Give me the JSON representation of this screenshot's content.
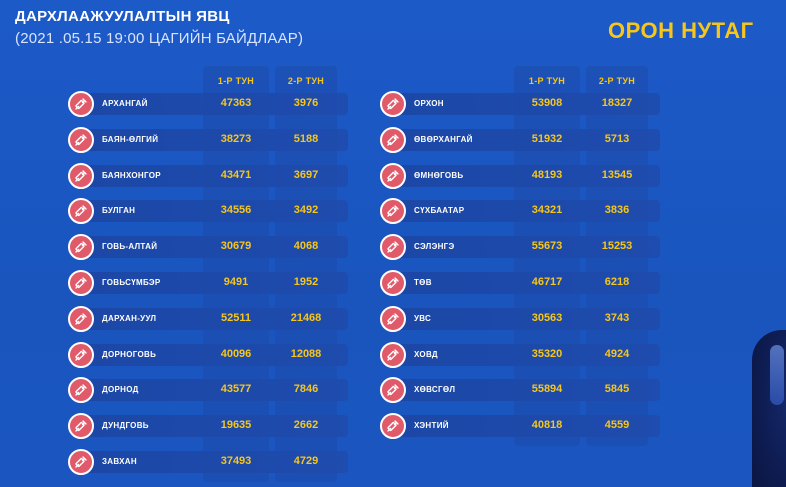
{
  "header": {
    "title": "ДАРХЛААЖУУЛАЛТЫН ЯВЦ",
    "subtitle": "(2021 .05.15    19:00 ЦАГИЙН БАЙДЛААР)",
    "region": "ОРОН НУТАГ"
  },
  "columns": {
    "dose1": "1-Р ТУН",
    "dose2": "2-Р ТУН"
  },
  "left_rows": [
    {
      "name": "АРХАНГАЙ",
      "dose1": "47363",
      "dose2": "3976"
    },
    {
      "name": "БАЯН-ӨЛГИЙ",
      "dose1": "38273",
      "dose2": "5188"
    },
    {
      "name": "БАЯНХОНГОР",
      "dose1": "43471",
      "dose2": "3697"
    },
    {
      "name": "БУЛГАН",
      "dose1": "34556",
      "dose2": "3492"
    },
    {
      "name": "ГОВЬ-АЛТАЙ",
      "dose1": "30679",
      "dose2": "4068"
    },
    {
      "name": "ГОВЬСҮМБЭР",
      "dose1": "9491",
      "dose2": "1952"
    },
    {
      "name": "ДАРХАН-УУЛ",
      "dose1": "52511",
      "dose2": "21468"
    },
    {
      "name": "ДОРНОГОВЬ",
      "dose1": "40096",
      "dose2": "12088"
    },
    {
      "name": "ДОРНОД",
      "dose1": "43577",
      "dose2": "7846"
    },
    {
      "name": "ДУНДГОВЬ",
      "dose1": "19635",
      "dose2": "2662"
    },
    {
      "name": "ЗАВХАН",
      "dose1": "37493",
      "dose2": "4729"
    }
  ],
  "right_rows": [
    {
      "name": "ОРХОН",
      "dose1": "53908",
      "dose2": "18327"
    },
    {
      "name": "ӨВӨРХАНГАЙ",
      "dose1": "51932",
      "dose2": "5713"
    },
    {
      "name": "ӨМНӨГОВЬ",
      "dose1": "48193",
      "dose2": "13545"
    },
    {
      "name": "СҮХБААТАР",
      "dose1": "34321",
      "dose2": "3836"
    },
    {
      "name": "СЭЛЭНГЭ",
      "dose1": "55673",
      "dose2": "15253"
    },
    {
      "name": "ТӨВ",
      "dose1": "46717",
      "dose2": "6218"
    },
    {
      "name": "УВС",
      "dose1": "30563",
      "dose2": "3743"
    },
    {
      "name": "ХОВД",
      "dose1": "35320",
      "dose2": "4924"
    },
    {
      "name": "ХӨВСГӨЛ",
      "dose1": "55894",
      "dose2": "5845"
    },
    {
      "name": "ХЭНТИЙ",
      "dose1": "40818",
      "dose2": "4559"
    }
  ],
  "icon": "syringe-icon",
  "colors": {
    "background": "#1c5ac8",
    "accent": "#f7c61b",
    "icon_bg": "#e15a6a"
  }
}
